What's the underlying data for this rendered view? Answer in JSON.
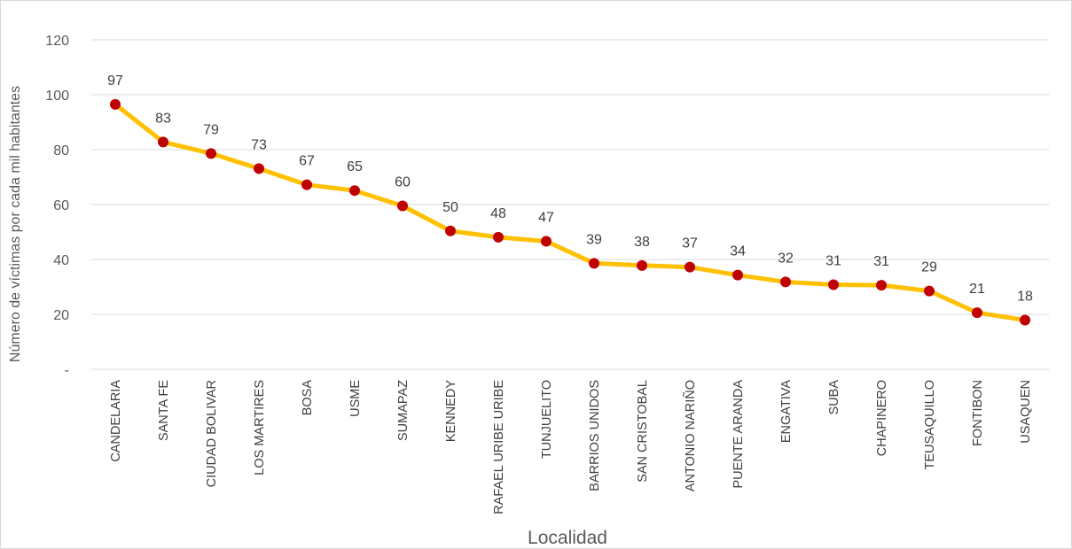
{
  "chart_data": {
    "type": "line",
    "title": "",
    "xlabel": "Localidad",
    "ylabel": "Número de víctimas por cada mil habitantes",
    "ylim": [
      0,
      120
    ],
    "y_ticks": [
      {
        "value": 0,
        "label": "-"
      },
      {
        "value": 20,
        "label": "20"
      },
      {
        "value": 40,
        "label": "40"
      },
      {
        "value": 60,
        "label": "60"
      },
      {
        "value": 80,
        "label": "80"
      },
      {
        "value": 100,
        "label": "100"
      },
      {
        "value": 120,
        "label": "120"
      }
    ],
    "grid": true,
    "legend": "none",
    "categories": [
      "CANDELARIA",
      "SANTA FE",
      "CIUDAD BOLIVAR",
      "LOS MARTIRES",
      "BOSA",
      "USME",
      "SUMAPAZ",
      "KENNEDY",
      "RAFAEL URIBE URIBE",
      "TUNJUELITO",
      "BARRIOS UNIDOS",
      "SAN CRISTOBAL",
      "ANTONIO NARIÑO",
      "PUENTE ARANDA",
      "ENGATIVA",
      "SUBA",
      "CHAPINERO",
      "TEUSAQUILLO",
      "FONTIBON",
      "USAQUEN"
    ],
    "values": [
      96.5,
      82.8,
      78.6,
      73.1,
      67.2,
      65.1,
      59.5,
      50.4,
      48.1,
      46.6,
      38.6,
      37.8,
      37.2,
      34.3,
      31.8,
      30.8,
      30.6,
      28.5,
      20.6,
      17.9
    ],
    "data_labels": [
      "97",
      "83",
      "79",
      "73",
      "67",
      "65",
      "60",
      "50",
      "48",
      "47",
      "39",
      "38",
      "37",
      "34",
      "32",
      "31",
      "31",
      "29",
      "21",
      "18"
    ],
    "colors": {
      "line": "#FFC000",
      "marker": "#C00000",
      "grid": "#D9D9D9",
      "text": "#404040"
    }
  }
}
